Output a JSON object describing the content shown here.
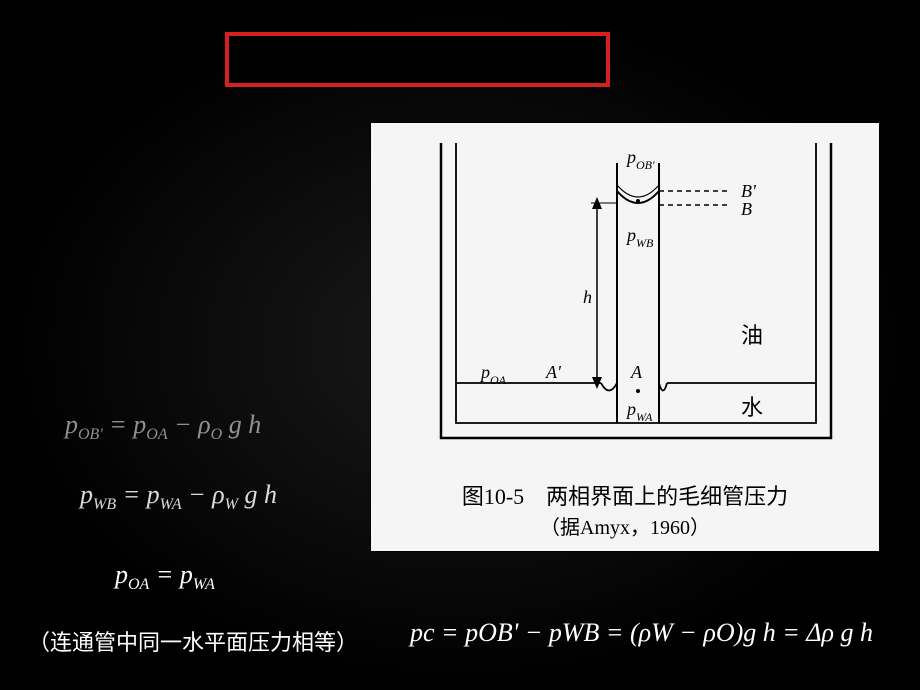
{
  "redBox": {
    "borderColor": "#d62020"
  },
  "equations": {
    "eq1_html": "p<span class='sub'>OB'</span> = p<span class='sub'>OA</span> − ρ<span class='sub'>O</span> g h",
    "eq2_html": "p<span class='sub'>WB</span> = p<span class='sub'>WA</span> − ρ<span class='sub'>W</span> g h",
    "eq3_html": "p<span class='sub'>OA</span> = p<span class='sub'>WA</span>",
    "note": "（连通管中同一水平面压力相等）",
    "eq4_html": "p<span class='sub'>c</span> = p<span class='sub'>OB</span>' − p<span class='sub'>WB</span> = (ρ<span class='sub'>W</span> − ρ<span class='sub'>O</span>)g h = Δρ g h"
  },
  "figure": {
    "caption_line1": "图10-5　两相界面上的毛细管压力",
    "caption_line2": "（据Amyx，1960）",
    "labels": {
      "p_ob": "p",
      "p_ob_sub": "OB'",
      "p_wb": "p",
      "p_wb_sub": "WB",
      "p_oa": "p",
      "p_oa_sub": "OA",
      "p_wa": "p",
      "p_wa_sub": "WA",
      "h": "h",
      "A": "A",
      "Aprime": "A'",
      "B": "B",
      "Bprime": "B'",
      "oil": "油",
      "water": "水"
    },
    "style": {
      "bg": "#f5f5f5",
      "stroke": "#000000",
      "strokeWidth": 1.8
    }
  }
}
